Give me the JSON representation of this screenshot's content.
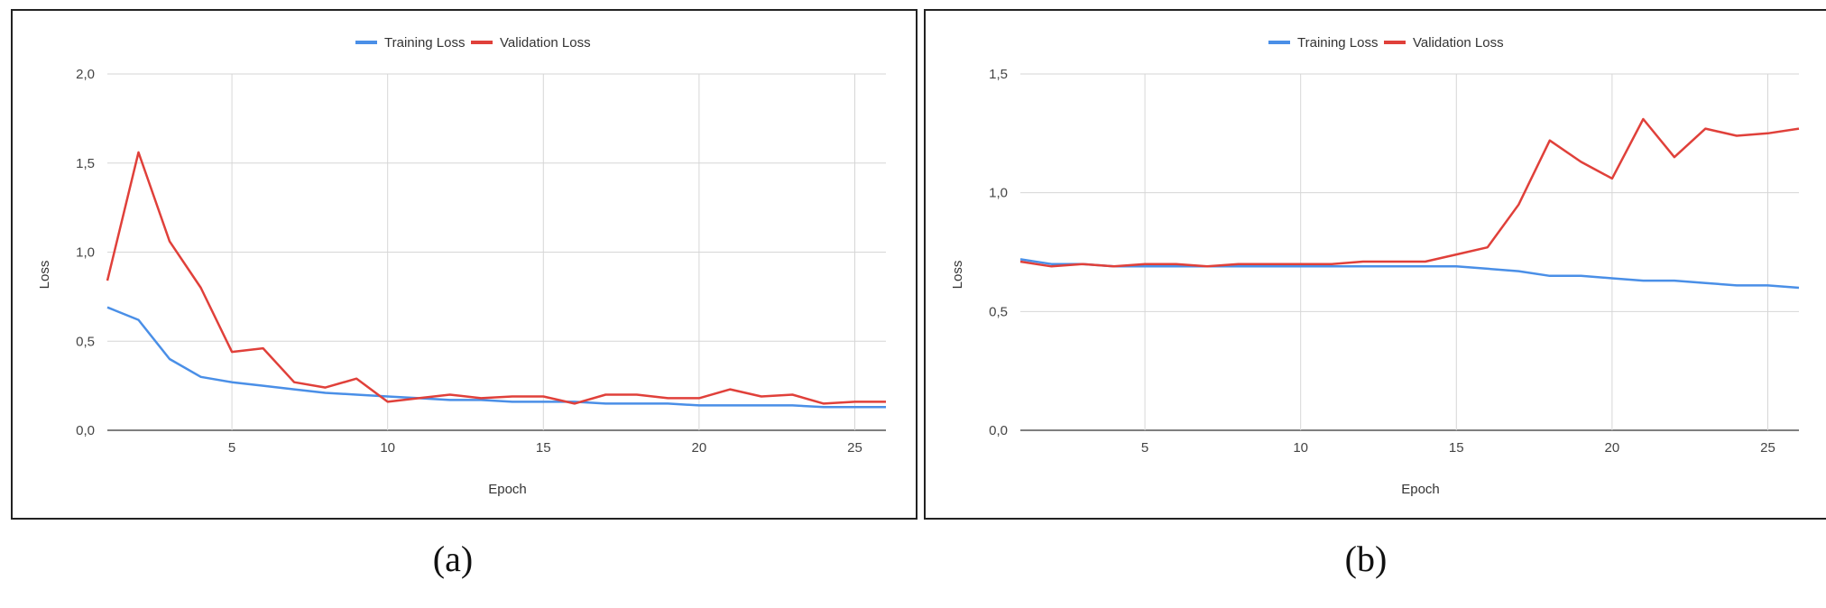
{
  "chart_data": [
    {
      "type": "line",
      "panel_label": "(a)",
      "xlabel": "Epoch",
      "ylabel": "Loss",
      "xlim": [
        1,
        26
      ],
      "ylim": [
        0,
        2.0
      ],
      "x_ticks": [
        5,
        10,
        15,
        20,
        25
      ],
      "y_ticks": [
        "0,0",
        "0,5",
        "1,0",
        "1,5",
        "2,0"
      ],
      "y_tick_values": [
        0,
        0.5,
        1.0,
        1.5,
        2.0
      ],
      "grid": true,
      "legend_position": "top",
      "x": [
        1,
        2,
        3,
        4,
        5,
        6,
        7,
        8,
        9,
        10,
        11,
        12,
        13,
        14,
        15,
        16,
        17,
        18,
        19,
        20,
        21,
        22,
        23,
        24,
        25,
        26
      ],
      "series": [
        {
          "name": "Training Loss",
          "color": "#4a8fe7",
          "values": [
            0.69,
            0.62,
            0.4,
            0.3,
            0.27,
            0.25,
            0.23,
            0.21,
            0.2,
            0.19,
            0.18,
            0.17,
            0.17,
            0.16,
            0.16,
            0.16,
            0.15,
            0.15,
            0.15,
            0.14,
            0.14,
            0.14,
            0.14,
            0.13,
            0.13,
            0.13
          ]
        },
        {
          "name": "Validation Loss",
          "color": "#e0403a",
          "values": [
            0.84,
            1.56,
            1.06,
            0.8,
            0.44,
            0.46,
            0.27,
            0.24,
            0.29,
            0.16,
            0.18,
            0.2,
            0.18,
            0.19,
            0.19,
            0.15,
            0.2,
            0.2,
            0.18,
            0.18,
            0.23,
            0.19,
            0.2,
            0.15,
            0.16,
            0.16
          ]
        }
      ]
    },
    {
      "type": "line",
      "panel_label": "(b)",
      "xlabel": "Epoch",
      "ylabel": "Loss",
      "xlim": [
        1,
        26
      ],
      "ylim": [
        0,
        1.5
      ],
      "x_ticks": [
        5,
        10,
        15,
        20,
        25
      ],
      "y_ticks": [
        "0,0",
        "0,5",
        "1,0",
        "1,5"
      ],
      "y_tick_values": [
        0,
        0.5,
        1.0,
        1.5
      ],
      "grid": true,
      "legend_position": "top",
      "x": [
        1,
        2,
        3,
        4,
        5,
        6,
        7,
        8,
        9,
        10,
        11,
        12,
        13,
        14,
        15,
        16,
        17,
        18,
        19,
        20,
        21,
        22,
        23,
        24,
        25,
        26
      ],
      "series": [
        {
          "name": "Training Loss",
          "color": "#4a8fe7",
          "values": [
            0.72,
            0.7,
            0.7,
            0.69,
            0.69,
            0.69,
            0.69,
            0.69,
            0.69,
            0.69,
            0.69,
            0.69,
            0.69,
            0.69,
            0.69,
            0.68,
            0.67,
            0.65,
            0.65,
            0.64,
            0.63,
            0.63,
            0.62,
            0.61,
            0.61,
            0.6
          ]
        },
        {
          "name": "Validation Loss",
          "color": "#e0403a",
          "values": [
            0.71,
            0.69,
            0.7,
            0.69,
            0.7,
            0.7,
            0.69,
            0.7,
            0.7,
            0.7,
            0.7,
            0.71,
            0.71,
            0.71,
            0.74,
            0.77,
            0.95,
            1.22,
            1.13,
            1.06,
            1.31,
            1.15,
            1.27,
            1.24,
            1.25,
            1.27
          ]
        }
      ]
    }
  ]
}
